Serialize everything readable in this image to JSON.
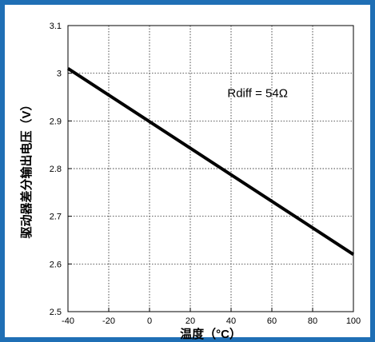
{
  "chart_data": {
    "type": "line",
    "xlabel": "温度（°C）",
    "ylabel": "驱动器差分输出电压（V）",
    "xlim": [
      -40,
      100
    ],
    "ylim": [
      2.5,
      3.1
    ],
    "xticks": [
      -40,
      -20,
      0,
      20,
      40,
      60,
      80,
      100
    ],
    "yticks": [
      2.5,
      2.6,
      2.7,
      2.8,
      2.9,
      3.0,
      3.1
    ],
    "xtick_labels": [
      "-40",
      "-20",
      "0",
      "20",
      "40",
      "60",
      "80",
      "100"
    ],
    "ytick_labels": [
      "2.5",
      "2.6",
      "2.7",
      "2.8",
      "2.9",
      "3",
      "3.1"
    ],
    "grid": true,
    "series": [
      {
        "x": [
          -40,
          100
        ],
        "y": [
          3.01,
          2.62
        ]
      }
    ],
    "annotation": "Rdiff = 54Ω",
    "line_color": "#000000",
    "frame_color": "#1f6fb5"
  }
}
